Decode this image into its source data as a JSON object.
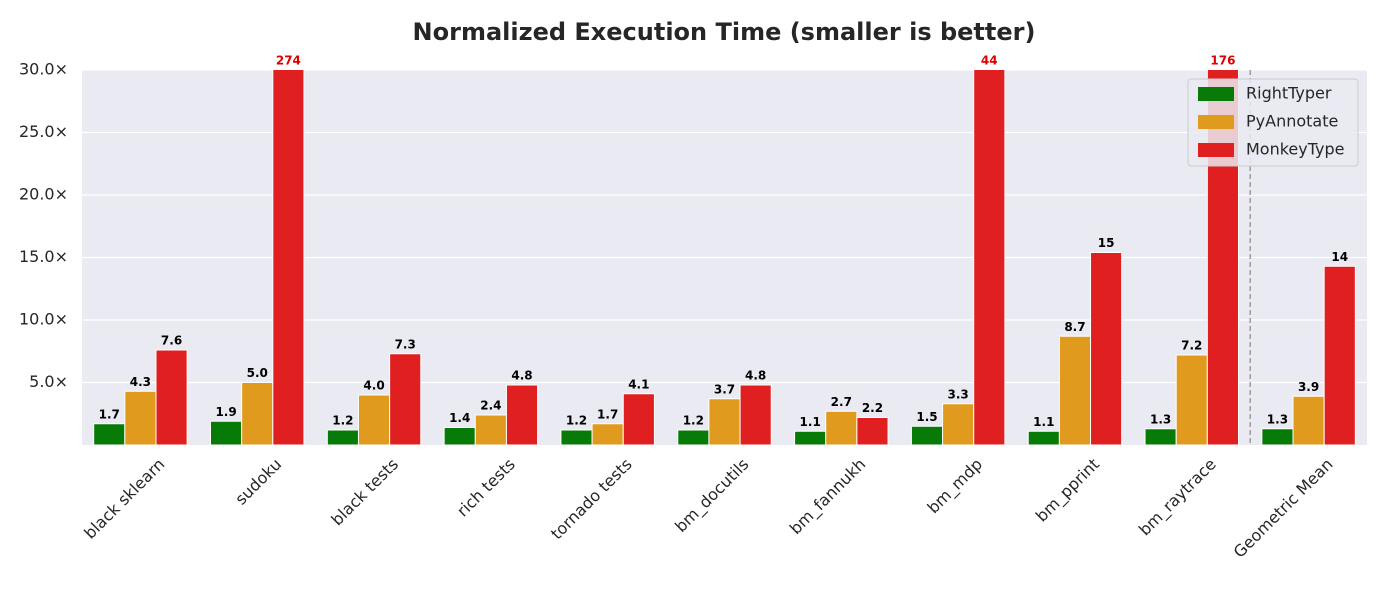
{
  "chart_data": {
    "type": "bar",
    "title": "Normalized Execution Time (smaller is better)",
    "categories": [
      "black sklearn",
      "sudoku",
      "black tests",
      "rich tests",
      "tornado tests",
      "bm_docutils",
      "bm_fannukh",
      "bm_mdp",
      "bm_pprint",
      "bm_raytrace",
      "Geometric Mean"
    ],
    "series": [
      {
        "name": "RightTyper",
        "color": "#087a08",
        "values": [
          1.7,
          1.9,
          1.2,
          1.4,
          1.2,
          1.2,
          1.1,
          1.5,
          1.1,
          1.3,
          1.3
        ],
        "value_labels": [
          "1.7",
          "1.9",
          "1.2",
          "1.4",
          "1.2",
          "1.2",
          "1.1",
          "1.5",
          "1.1",
          "1.3",
          "1.3"
        ]
      },
      {
        "name": "PyAnnotate",
        "color": "#e09a1e",
        "values": [
          4.3,
          5.0,
          4.0,
          2.4,
          1.7,
          3.7,
          2.7,
          3.3,
          8.7,
          7.2,
          3.9
        ],
        "value_labels": [
          "4.3",
          "5.0",
          "4.0",
          "2.4",
          "1.7",
          "3.7",
          "2.7",
          "3.3",
          "8.7",
          "7.2",
          "3.9"
        ]
      },
      {
        "name": "MonkeyType",
        "color": "#e02020",
        "values": [
          7.6,
          274,
          7.3,
          4.8,
          4.1,
          4.8,
          2.2,
          44,
          15.4,
          176,
          14.3
        ],
        "value_labels": [
          "7.6",
          "274",
          "7.3",
          "4.8",
          "4.1",
          "4.8",
          "2.2",
          "44",
          "15",
          "176",
          "14"
        ]
      }
    ],
    "ylim": [
      0,
      30
    ],
    "yticks": [
      {
        "value": 5,
        "label": "5.0×"
      },
      {
        "value": 10,
        "label": "10.0×"
      },
      {
        "value": 15,
        "label": "15.0×"
      },
      {
        "value": 20,
        "label": "20.0×"
      },
      {
        "value": 25,
        "label": "25.0×"
      },
      {
        "value": 30,
        "label": "30.0×"
      }
    ],
    "grid": true,
    "legend": "upper right"
  }
}
